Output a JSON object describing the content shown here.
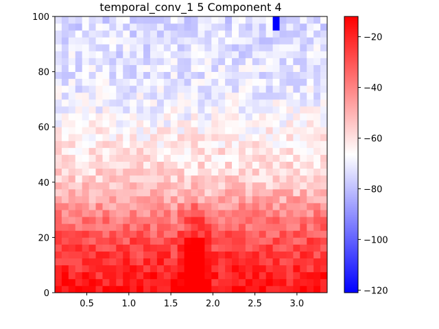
{
  "chart_data": {
    "type": "heatmap",
    "title": "temporal_conv_1 5 Component 4",
    "xlabel": "",
    "ylabel": "",
    "xlim": [
      0.12,
      3.36
    ],
    "ylim": [
      0,
      100
    ],
    "x_ticks": [
      0.5,
      1.0,
      1.5,
      2.0,
      2.5,
      3.0
    ],
    "x_tick_labels": [
      "0.5",
      "1.0",
      "1.5",
      "2.0",
      "2.5",
      "3.0"
    ],
    "y_ticks": [
      0,
      20,
      40,
      60,
      80,
      100
    ],
    "y_tick_labels": [
      "0",
      "20",
      "40",
      "60",
      "80",
      "100"
    ],
    "grid": false,
    "colormap": "bwr",
    "colormap_colors": [
      "#0000ff",
      "#ffffff",
      "#ff0000"
    ],
    "color_range": [
      -121,
      -12
    ],
    "colorbar": {
      "placement": "right",
      "ticks": [
        -20,
        -40,
        -60,
        -80,
        -100,
        -120
      ],
      "tick_labels": [
        "−20",
        "−40",
        "−60",
        "−80",
        "−100",
        "−120"
      ]
    },
    "grid_shape": {
      "columns": 40,
      "rows": 40
    },
    "row_profile_y": [
      0,
      10,
      20,
      30,
      35,
      40,
      50,
      60,
      70,
      80,
      90,
      100
    ],
    "row_profile_value": [
      -16,
      -22,
      -30,
      -42,
      -50,
      -56,
      -60,
      -65,
      -70,
      -72,
      -73,
      -74
    ],
    "notch_center_x": 1.8,
    "notch_effect": "values around x ≈ 1.7–1.9 are less intense (closer to -60) for y below 30",
    "values_sample": {
      "min_cell": {
        "x": 2.75,
        "y": 99,
        "value": -121
      },
      "max_cell": {
        "x": 1.1,
        "y": 3,
        "value": -12
      }
    }
  }
}
